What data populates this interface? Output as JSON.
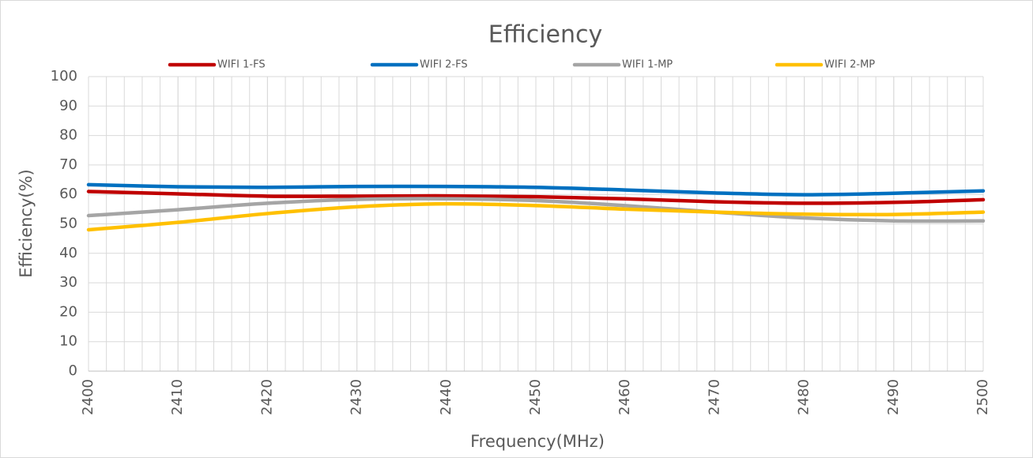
{
  "chart_data": {
    "type": "line",
    "title": "Efficiency",
    "x_label": "Frequency(MHz)",
    "y_label": "Efficiency(%)",
    "x": [
      2400,
      2410,
      2420,
      2430,
      2440,
      2450,
      2460,
      2470,
      2480,
      2490,
      2500
    ],
    "series": [
      {
        "name": "WIFI 1-FS",
        "color": "#c00000",
        "values": [
          61,
          60.2,
          59.4,
          59.4,
          59.5,
          59.2,
          58.5,
          57.5,
          57,
          57.3,
          58.2
        ]
      },
      {
        "name": "WIFI 2-FS",
        "color": "#0070c0",
        "values": [
          63.3,
          62.6,
          62.4,
          62.7,
          62.7,
          62.4,
          61.5,
          60.5,
          59.9,
          60.4,
          61.2
        ]
      },
      {
        "name": "WIFI 1-MP",
        "color": "#a5a5a5",
        "values": [
          52.8,
          54.8,
          57,
          58.3,
          58.5,
          57.9,
          56.2,
          54,
          52,
          51,
          51
        ]
      },
      {
        "name": "WIFI 2-MP",
        "color": "#ffc000",
        "values": [
          48,
          50.5,
          53.5,
          55.8,
          56.8,
          56.2,
          55,
          54,
          53.3,
          53.2,
          54
        ]
      }
    ],
    "xlim": [
      2400,
      2500
    ],
    "xticks": [
      2400,
      2410,
      2420,
      2430,
      2440,
      2450,
      2460,
      2470,
      2480,
      2490,
      2500
    ],
    "xminorticks": [
      2400,
      2402,
      2404,
      2406,
      2408,
      2410,
      2412,
      2414,
      2416,
      2418,
      2420,
      2422,
      2424,
      2426,
      2428,
      2430,
      2432,
      2434,
      2436,
      2438,
      2440,
      2442,
      2444,
      2446,
      2448,
      2450,
      2452,
      2454,
      2456,
      2458,
      2460,
      2462,
      2464,
      2466,
      2468,
      2470,
      2472,
      2474,
      2476,
      2478,
      2480,
      2482,
      2484,
      2486,
      2488,
      2490,
      2492,
      2494,
      2496,
      2498,
      2500
    ],
    "ylim": [
      0,
      100
    ],
    "yticks": [
      0,
      10,
      20,
      30,
      40,
      50,
      60,
      70,
      80,
      90,
      100
    ],
    "grid": true,
    "smooth": true,
    "legend": "top"
  }
}
